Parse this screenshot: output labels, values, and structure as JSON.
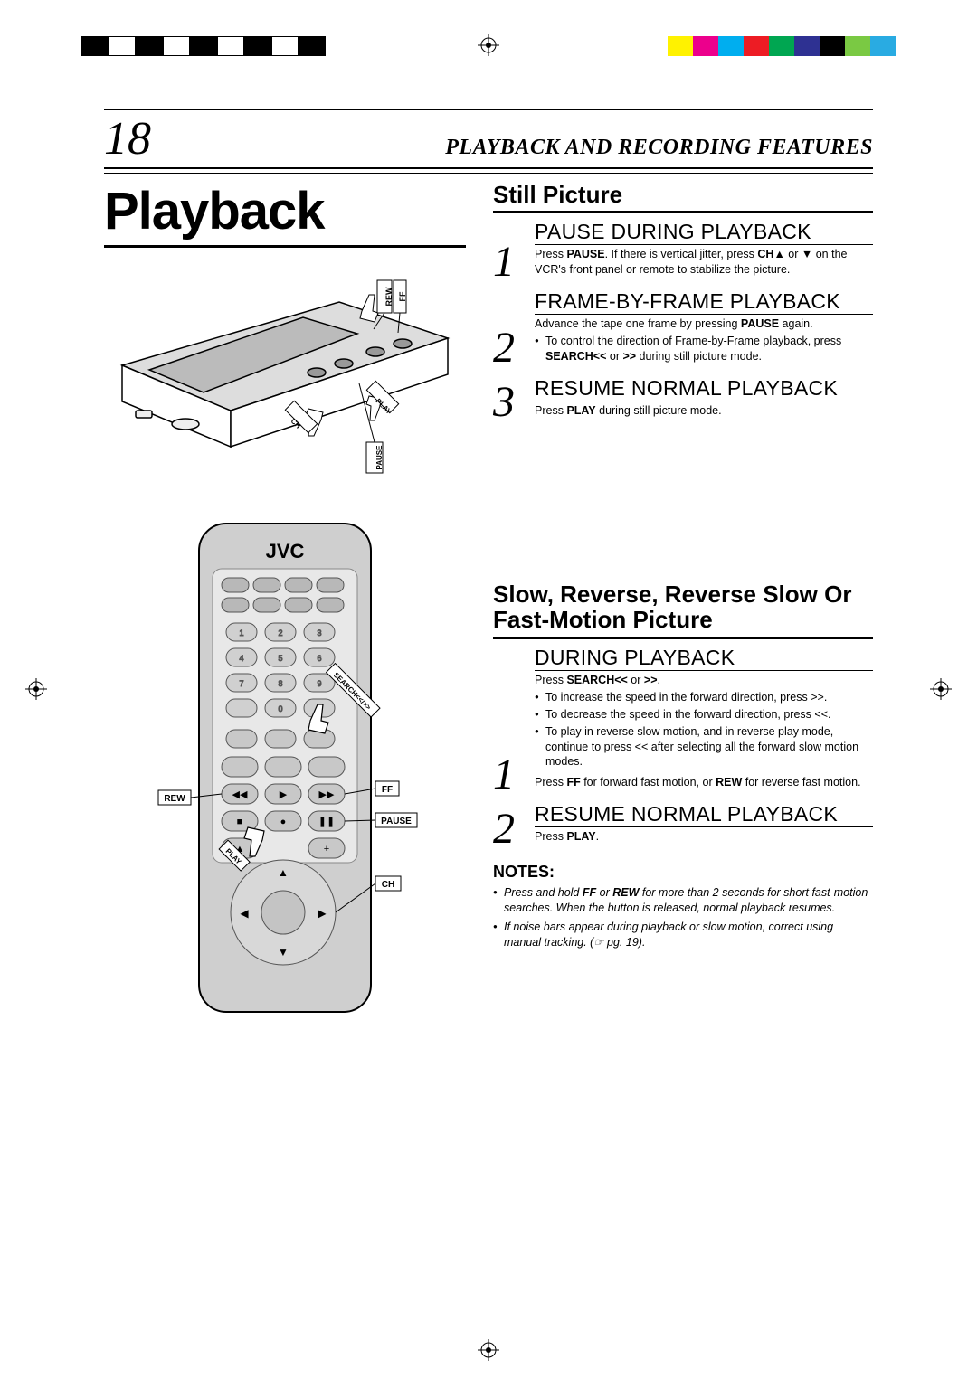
{
  "print_marks": {
    "bw_shades": [
      "#000000",
      "#ffffff",
      "#000000",
      "#ffffff",
      "#000000",
      "#ffffff",
      "#000000",
      "#ffffff",
      "#000000"
    ],
    "colors": [
      "#fff200",
      "#ec008c",
      "#00aeef",
      "#ed1c24",
      "#00a651",
      "#2e3192",
      "#000000",
      "#7ac943",
      "#29abe2"
    ]
  },
  "header": {
    "page_number": "18",
    "title": "PLAYBACK AND RECORDING FEATURES"
  },
  "main_title": "Playback",
  "illustrations": {
    "vcr_labels": {
      "rew": "REW",
      "ff": "FF",
      "play": "PLAY",
      "pause": "PAUSE",
      "ch": "CH"
    },
    "remote_labels": {
      "brand": "JVC",
      "rew": "REW",
      "ff": "FF",
      "pause": "PAUSE",
      "play": "PLAY",
      "ch": "CH",
      "search": "SEARCH",
      "nums": [
        "1",
        "2",
        "3",
        "4",
        "5",
        "6",
        "7",
        "8",
        "9",
        "0"
      ]
    }
  },
  "section1": {
    "title": "Still Picture",
    "steps": [
      {
        "num": "1",
        "heading": "PAUSE DURING PLAYBACK",
        "body": "Press <b>PAUSE</b>. If there is vertical jitter, press <b>CH▲</b> or ▼ on the VCR's front panel or remote to stabilize the picture."
      },
      {
        "num": "2",
        "heading": "FRAME-BY-FRAME PLAYBACK",
        "body": "Advance the tape one frame by pressing <b>PAUSE</b> again.",
        "bullets": [
          "To control the direction of Frame-by-Frame playback, press <b>SEARCH&lt;&lt;</b> or <b>&gt;&gt;</b> during still picture mode."
        ]
      },
      {
        "num": "3",
        "heading": "RESUME NORMAL PLAYBACK",
        "body": "Press <b>PLAY</b> during still picture mode."
      }
    ]
  },
  "section2": {
    "title": "Slow, Reverse, Reverse Slow Or Fast-Motion Picture",
    "steps": [
      {
        "num": "1",
        "heading": "DURING PLAYBACK",
        "body": "Press <b>SEARCH&lt;&lt;</b> or <b>&gt;&gt;</b>.",
        "bullets": [
          "To increase the speed in the forward direction, press &gt;&gt;.",
          "To decrease the speed in the forward direction, press &lt;&lt;.",
          "To play in reverse slow motion, and in reverse play mode, continue to press &lt;&lt; after selecting all the forward slow motion modes."
        ],
        "extra": "Press <b>FF</b> for forward fast motion, or <b>REW</b> for reverse fast motion."
      },
      {
        "num": "2",
        "heading": "RESUME NORMAL PLAYBACK",
        "body": "Press <b>PLAY</b>."
      }
    ]
  },
  "notes": {
    "heading": "NOTES:",
    "items": [
      "Press and hold <b>FF</b> or <b>REW</b> for more than 2 seconds for short fast-motion searches. When the button is released, normal playback resumes.",
      "If noise bars appear during playback or slow motion, correct using manual tracking. (☞ pg. 19)."
    ]
  }
}
